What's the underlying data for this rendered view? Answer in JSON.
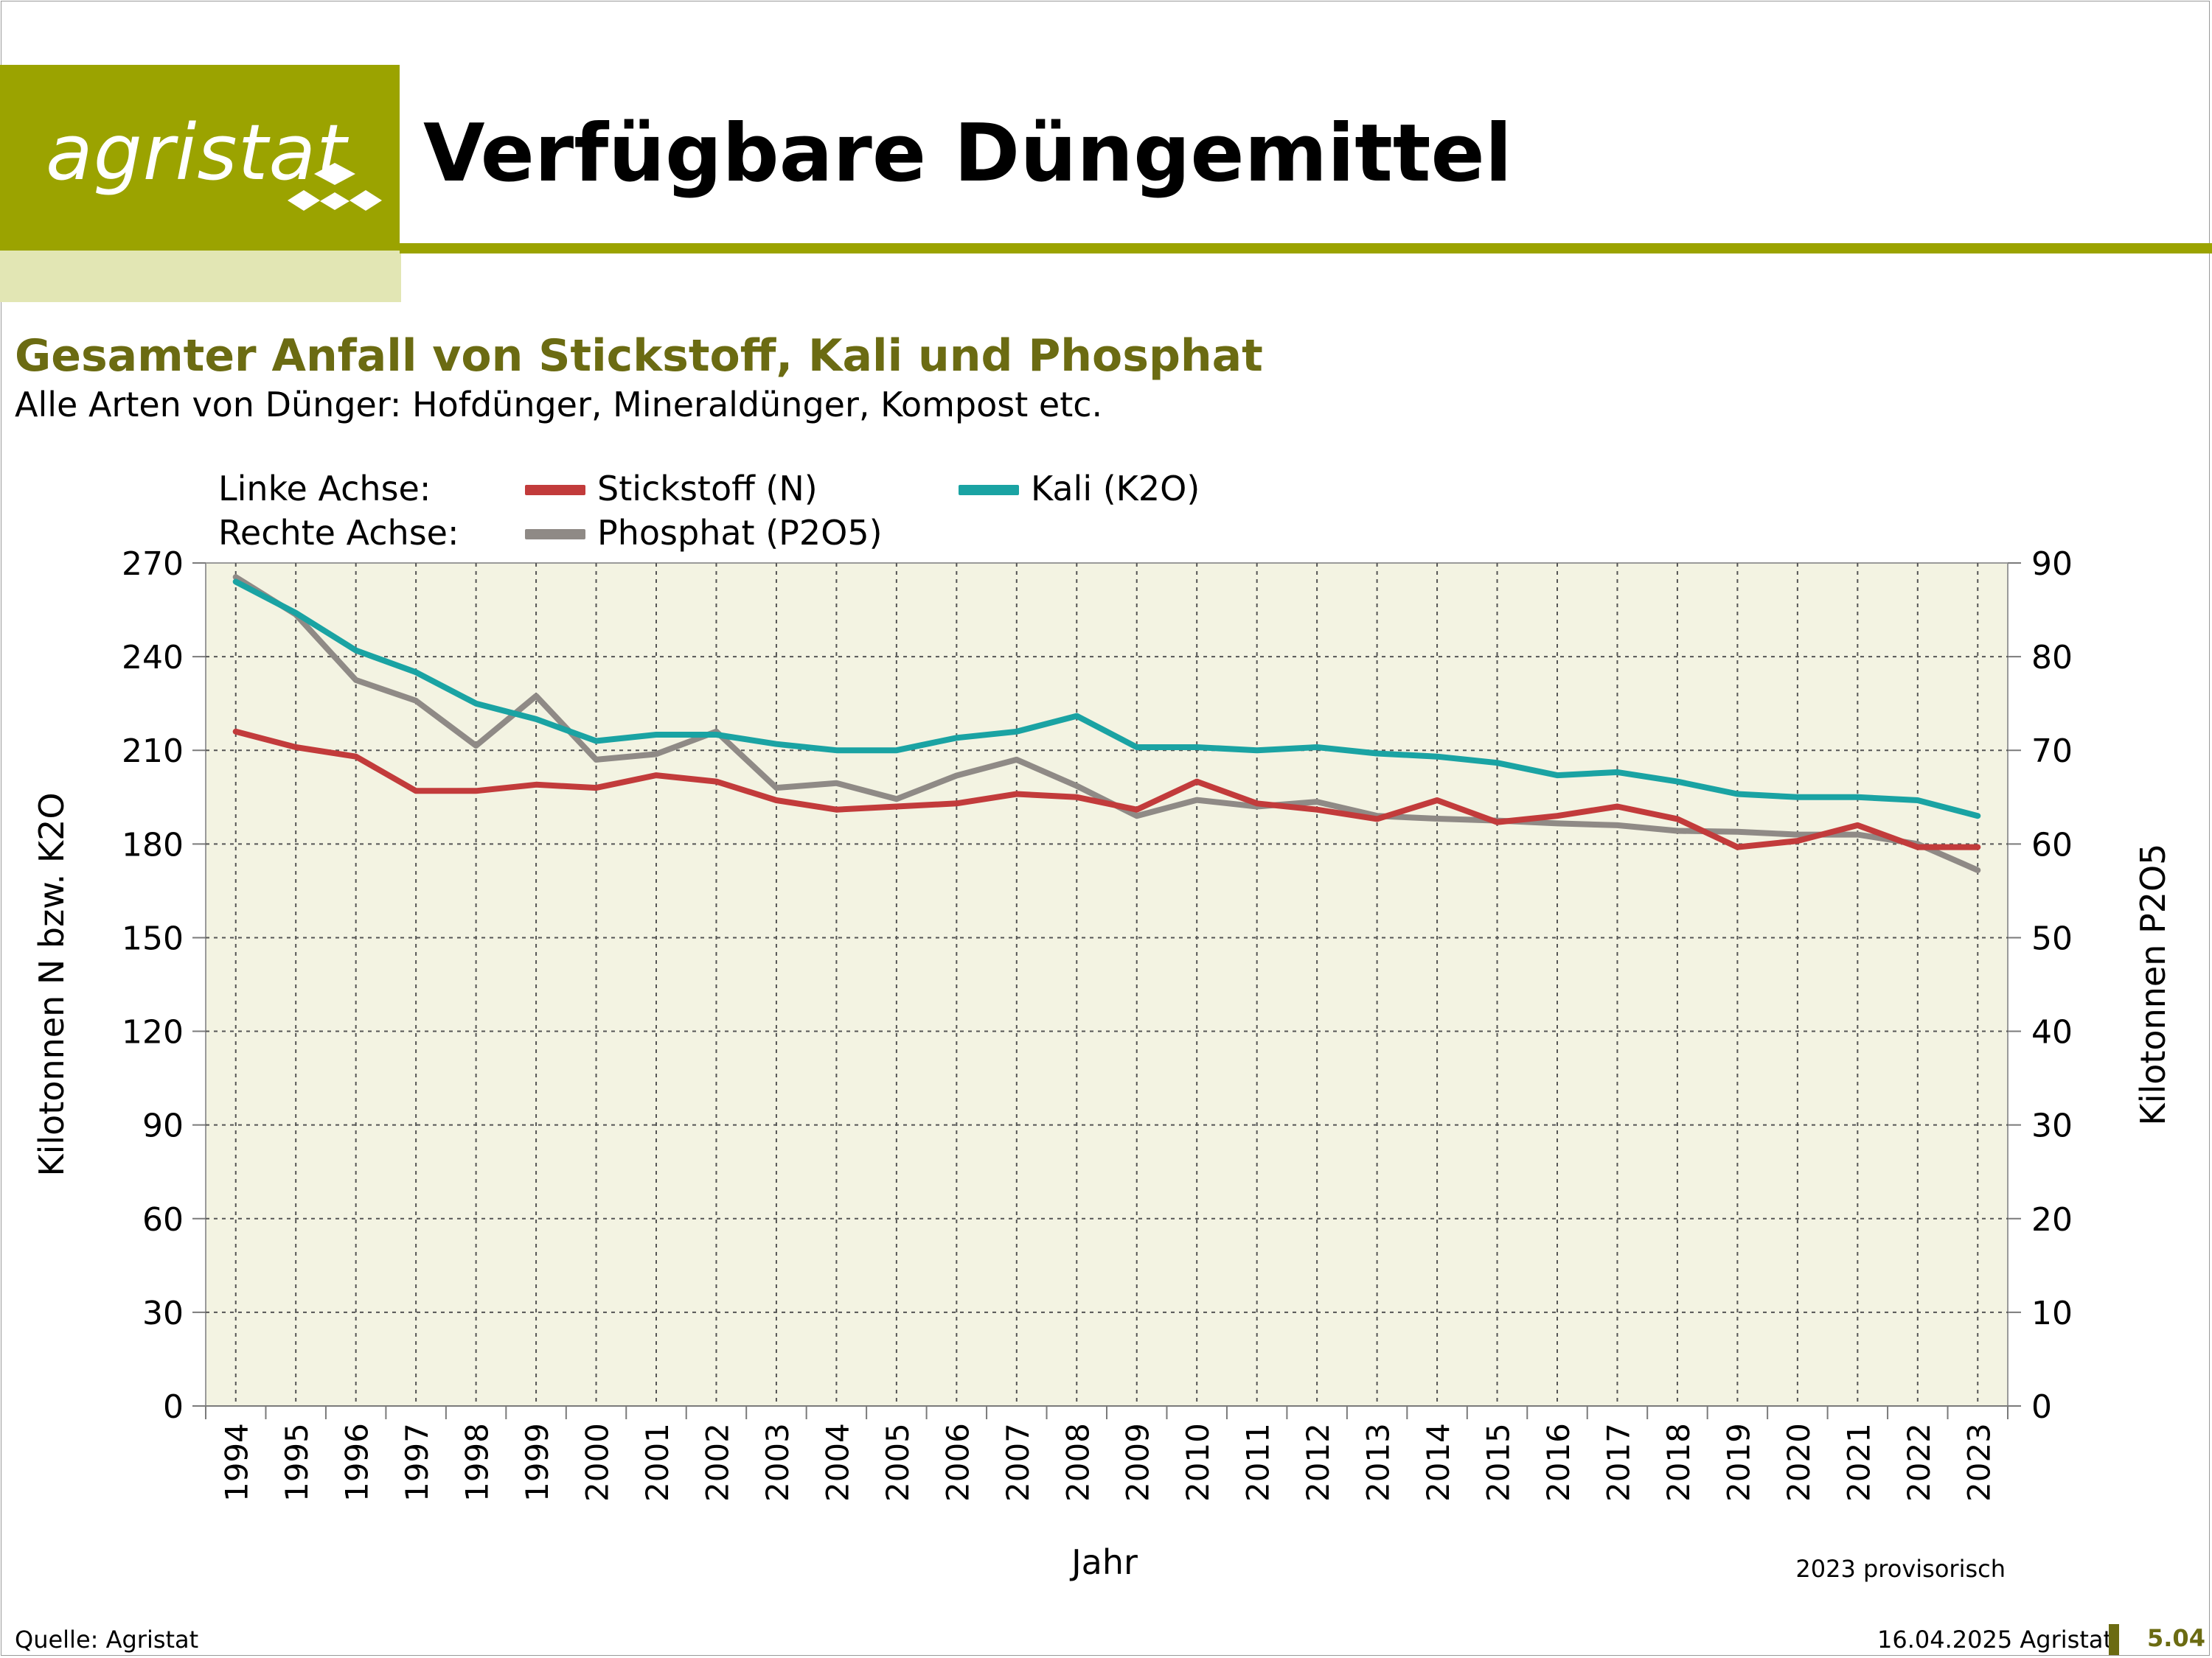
{
  "header": {
    "logo_text": "agristat",
    "title": "Verfügbare Düngemittel"
  },
  "section": {
    "title": "Gesamter Anfall von Stickstoff, Kali und Phosphat",
    "subtitle": "Alle Arten von Dünger: Hofdünger, Mineraldünger, Kompost etc."
  },
  "legend": {
    "left_axis_label": "Linke Achse:",
    "right_axis_label": "Rechte Achse:",
    "n_label": "Stickstoff (N)",
    "k_label": "Kali (K2O)",
    "p_label": "Phosphat (P2O5)"
  },
  "colors": {
    "brand": "#9ba300",
    "brand_light": "#e2e6b4",
    "title": "#6b6b12",
    "plot_bg": "#f3f3e2",
    "stickstoff": "#c23b3b",
    "kali": "#1aa3a3",
    "phosphat": "#8f8a86"
  },
  "chart_data": {
    "type": "line",
    "xlabel": "Jahr",
    "ylabel_left": "Kilotonnen N bzw. K2O",
    "ylabel_right": "Kilotonnen P2O5",
    "ylim_left": [
      0,
      270
    ],
    "ylim_right": [
      0,
      90
    ],
    "yticks_left": [
      0,
      30,
      60,
      90,
      120,
      150,
      180,
      210,
      240,
      270
    ],
    "yticks_right": [
      0,
      10,
      20,
      30,
      40,
      50,
      60,
      70,
      80,
      90
    ],
    "grid": true,
    "note": "2023 provisorisch",
    "x": [
      "1994",
      "1995",
      "1996",
      "1997",
      "1998",
      "1999",
      "2000",
      "2001",
      "2002",
      "2003",
      "2004",
      "2005",
      "2006",
      "2007",
      "2008",
      "2009",
      "2010",
      "2011",
      "2012",
      "2013",
      "2014",
      "2015",
      "2016",
      "2017",
      "2018",
      "2019",
      "2020",
      "2021",
      "2022",
      "2023"
    ],
    "series": [
      {
        "name": "Stickstoff (N)",
        "axis": "left",
        "color": "#c23b3b",
        "values": [
          216,
          211,
          208,
          197,
          197,
          199,
          198,
          202,
          200,
          194,
          191,
          192,
          193,
          196,
          195,
          191,
          200,
          193,
          191,
          188,
          194,
          187,
          189,
          192,
          188,
          179,
          181,
          186,
          179,
          179
        ]
      },
      {
        "name": "Kali (K2O)",
        "axis": "left",
        "color": "#1aa3a3",
        "values": [
          264,
          254,
          242,
          235,
          225,
          220,
          213,
          215,
          215,
          212,
          210,
          210,
          214,
          216,
          221,
          211,
          211,
          210,
          211,
          209,
          208,
          206,
          202,
          203,
          200,
          196,
          195,
          195,
          194,
          189
        ]
      },
      {
        "name": "Phosphat (P2O5)",
        "axis": "right",
        "color": "#8f8a86",
        "values": [
          88.5,
          84.5,
          77.5,
          75.3,
          70.5,
          75.8,
          69.0,
          69.6,
          72.0,
          66.0,
          66.5,
          64.8,
          67.3,
          69.0,
          66.2,
          63.0,
          64.7,
          64.0,
          64.5,
          63.0,
          62.7,
          62.5,
          62.2,
          62.0,
          61.4,
          61.3,
          61.0,
          61.0,
          60.0,
          57.2
        ]
      }
    ]
  },
  "footer": {
    "source": "Quelle: Agristat",
    "date": "16.04.2025 Agristat",
    "page": "5.04"
  }
}
